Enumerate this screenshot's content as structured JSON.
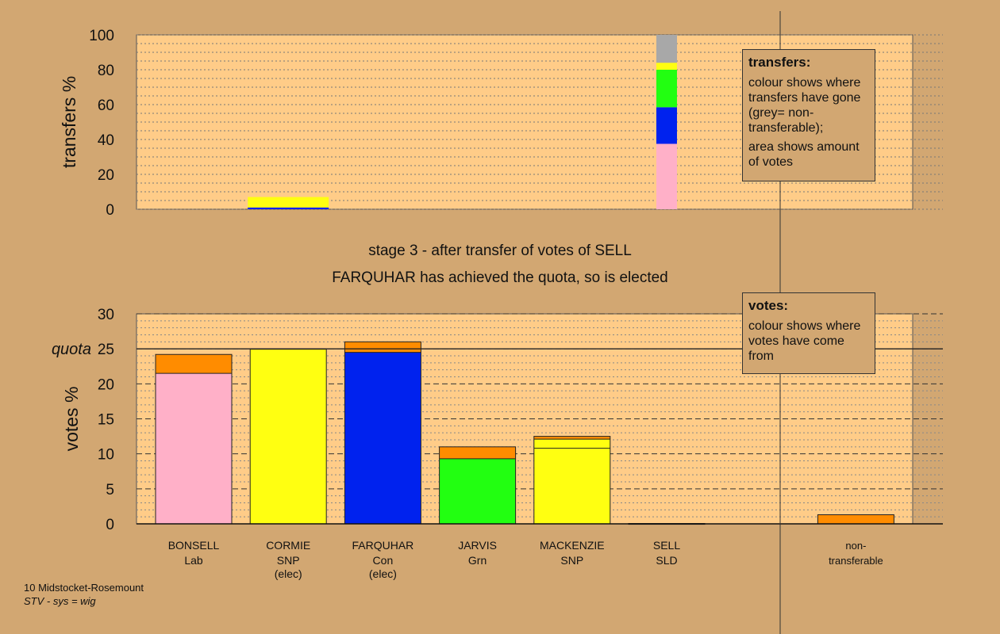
{
  "chart_data": [
    {
      "type": "bar",
      "stacked": true,
      "ylabel": "transfers %",
      "ylim": [
        0,
        100
      ],
      "yticks": [
        0,
        20,
        40,
        60,
        80,
        100
      ],
      "grid": true,
      "bars": [
        {
          "slot": 1,
          "segments": [
            {
              "color": "#0022EE",
              "value": 1
            },
            {
              "color": "#FFFF11",
              "value": 6
            }
          ]
        },
        {
          "slot": 5,
          "segments": [
            {
              "color": "#FFB0C8",
              "value": 37.5
            },
            {
              "color": "#0022EE",
              "value": 21
            },
            {
              "color": "#22FF11",
              "value": 21.5
            },
            {
              "color": "#FFFF11",
              "value": 4
            },
            {
              "color": "#A8A8A8",
              "value": 16
            }
          ]
        }
      ],
      "legend": {
        "title": "transfers:",
        "lines": [
          "colour shows where transfers have gone (grey= non-transferable);",
          "area shows amount of votes"
        ]
      }
    },
    {
      "type": "bar",
      "stacked": true,
      "ylabel": "votes %",
      "ylim": [
        0,
        30
      ],
      "yticks": [
        0,
        5,
        10,
        15,
        20,
        25,
        30
      ],
      "grid": true,
      "quota": {
        "label": "quota",
        "value": 25
      },
      "categories": [
        {
          "name": "BONSELL",
          "party": "Lab",
          "note": ""
        },
        {
          "name": "CORMIE",
          "party": "SNP",
          "note": "(elec)"
        },
        {
          "name": "FARQUHAR",
          "party": "Con",
          "note": "(elec)"
        },
        {
          "name": "JARVIS",
          "party": "Grn",
          "note": ""
        },
        {
          "name": "MACKENZIE",
          "party": "SNP",
          "note": ""
        },
        {
          "name": "SELL",
          "party": "SLD",
          "note": ""
        },
        {
          "name": "non-",
          "party": "transferable",
          "note": ""
        }
      ],
      "bars": [
        {
          "slot": 0,
          "segments": [
            {
              "color": "#FFB0C8",
              "value": 21.5
            },
            {
              "color": "#FF8C00",
              "value": 2.7
            }
          ]
        },
        {
          "slot": 1,
          "segments": [
            {
              "color": "#FFFF11",
              "value": 24.95
            },
            {
              "color": "#FF8C00",
              "value": 0.05
            }
          ]
        },
        {
          "slot": 2,
          "segments": [
            {
              "color": "#0022EE",
              "value": 24.5
            },
            {
              "color": "#FF8C00",
              "value": 1.5
            }
          ]
        },
        {
          "slot": 3,
          "segments": [
            {
              "color": "#22FF11",
              "value": 9.3
            },
            {
              "color": "#FF8C00",
              "value": 1.7
            }
          ]
        },
        {
          "slot": 4,
          "segments": [
            {
              "color": "#FFFF11",
              "value": 10.8
            },
            {
              "color": "#FFFF11",
              "value": 1.3
            },
            {
              "color": "#FF8C00",
              "value": 0.4
            }
          ]
        },
        {
          "slot": 5,
          "segments": [
            {
              "color": "#FF8C00",
              "value": 0.05
            }
          ]
        },
        {
          "slot": 7,
          "segments": [
            {
              "color": "#FF8C00",
              "value": 1.3
            }
          ]
        }
      ],
      "legend": {
        "title": "votes:",
        "lines": [
          "colour shows where votes have come from"
        ]
      }
    }
  ],
  "caption": {
    "line1": "stage 3 - after transfer of votes of SELL",
    "line2": "FARQUHAR has achieved the quota, so is elected"
  },
  "footer": {
    "ward": "10 Midstocket-Rosemount",
    "system": "STV - sys = wig"
  }
}
